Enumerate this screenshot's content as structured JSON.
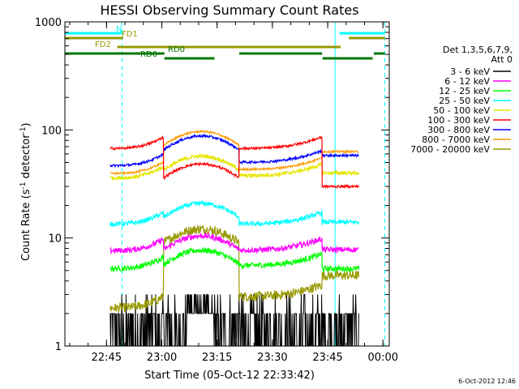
{
  "chart_data": {
    "type": "line",
    "title": "HESSI Observing Summary Count Rates",
    "xlabel": "Start Time (05-Oct-12 22:33:42)",
    "ylabel": "Count Rate (s⁻¹ detector⁻¹)",
    "ylabel_main": "Count Rate (s",
    "ylabel_mid": " detector",
    "ylabel_end": ")",
    "ylabel_sup": "-1",
    "y_scale": "log",
    "ylim": [
      1,
      1000
    ],
    "y_ticks": [
      {
        "value": 1,
        "label": "1"
      },
      {
        "value": 10,
        "label": "10"
      },
      {
        "value": 100,
        "label": "100"
      },
      {
        "value": 1000,
        "label": "1000"
      }
    ],
    "x_unit": "minutes after 22:33:42",
    "xlim": [
      0,
      88
    ],
    "x_ticks": [
      {
        "value": 11.3,
        "label": "22:45"
      },
      {
        "value": 26.3,
        "label": "23:00"
      },
      {
        "value": 41.3,
        "label": "23:15"
      },
      {
        "value": 56.3,
        "label": "23:30"
      },
      {
        "value": 71.3,
        "label": "23:45"
      },
      {
        "value": 86.3,
        "label": "00:00"
      }
    ],
    "legend_header": [
      "Det 1,3,5,6,7,9,",
      "Att 0"
    ],
    "legend_position": "right",
    "series": [
      {
        "name": "3 - 6 keV",
        "color": "#000000"
      },
      {
        "name": "6 - 12 keV",
        "color": "#ff00ff"
      },
      {
        "name": "12 - 25 keV",
        "color": "#00ff00"
      },
      {
        "name": "25 - 50 keV",
        "color": "#00ffff"
      },
      {
        "name": "50 - 100 keV",
        "color": "#e6e600"
      },
      {
        "name": "100 - 300 keV",
        "color": "#ff0000"
      },
      {
        "name": "300 - 800 keV",
        "color": "#0000ff"
      },
      {
        "name": "800 - 7000 keV",
        "color": "#ff9900"
      },
      {
        "name": "7000 - 20000 keV",
        "color": "#999900"
      }
    ],
    "data_gaps": [
      {
        "from": 0,
        "to": 12.3
      },
      {
        "from": 79.8,
        "to": 88
      }
    ],
    "vertical_markers": [
      {
        "x": 15.5,
        "color": "#00ffff",
        "style": "dashed"
      },
      {
        "x": 73.3,
        "color": "#00ffff",
        "style": "solid"
      },
      {
        "x": 86.8,
        "color": "#00ffff",
        "style": "dashed"
      }
    ],
    "flag_bars": [
      {
        "label": "N",
        "color": "#00ffff",
        "ranges": [
          [
            0,
            15.5
          ],
          [
            74.5,
            86.8
          ]
        ]
      },
      {
        "label": "FD1",
        "color": "#999900",
        "ranges": [
          [
            0,
            15.8
          ],
          [
            77,
            86.8
          ]
        ]
      },
      {
        "label": "FD2",
        "color": "#999900",
        "ranges": [
          [
            14.2,
            74.8
          ]
        ]
      },
      {
        "label": "RD0",
        "color": "#007700",
        "ranges": [
          [
            0,
            27
          ],
          [
            47.3,
            69.8
          ],
          [
            83.8,
            86.8
          ]
        ]
      },
      {
        "label": "RD6",
        "color": "#007700",
        "ranges": [
          [
            27,
            40.6
          ],
          [
            69.9,
            83.5
          ]
        ]
      }
    ],
    "timestamp": "6-Oct-2012 12:46"
  }
}
